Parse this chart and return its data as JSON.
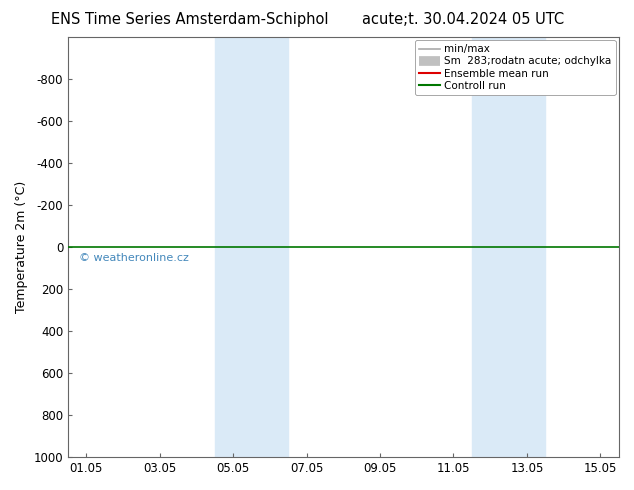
{
  "title_left": "ENS Time Series Amsterdam-Schiphol",
  "title_right": "acute;t. 30.04.2024 05 UTC",
  "ylabel": "Temperature 2m (°C)",
  "watermark": "© weatheronline.cz",
  "ylim_bottom": 1000,
  "ylim_top": -1000,
  "yticks": [
    -800,
    -600,
    -400,
    -200,
    0,
    200,
    400,
    600,
    800,
    1000
  ],
  "xtick_labels": [
    "01.05",
    "03.05",
    "05.05",
    "07.05",
    "09.05",
    "11.05",
    "13.05",
    "15.05"
  ],
  "xtick_positions": [
    0,
    2,
    4,
    6,
    8,
    10,
    12,
    14
  ],
  "x_min": -0.5,
  "x_max": 14.5,
  "shaded_regions": [
    {
      "x_start": 3.5,
      "x_end": 5.5,
      "color": "#daeaf7"
    },
    {
      "x_start": 10.5,
      "x_end": 12.5,
      "color": "#daeaf7"
    }
  ],
  "horizontal_line_y": 0,
  "horizontal_line_color_green": "#007700",
  "legend_entries": [
    {
      "label": "min/max",
      "color": "#aaaaaa",
      "lw": 1.2,
      "linestyle": "-"
    },
    {
      "label": "Sm  283;rodatn acute; odchylka",
      "color": "#c0c0c0",
      "lw": 7,
      "linestyle": "-"
    },
    {
      "label": "Ensemble mean run",
      "color": "#dd0000",
      "lw": 1.5,
      "linestyle": "-"
    },
    {
      "label": "Controll run",
      "color": "#007700",
      "lw": 1.5,
      "linestyle": "-"
    }
  ],
  "background_color": "#ffffff",
  "border_color": "#666666",
  "title_fontsize": 10.5,
  "axis_label_fontsize": 9,
  "tick_fontsize": 8.5,
  "watermark_color": "#4488bb",
  "watermark_fontsize": 8,
  "legend_fontsize": 7.5
}
